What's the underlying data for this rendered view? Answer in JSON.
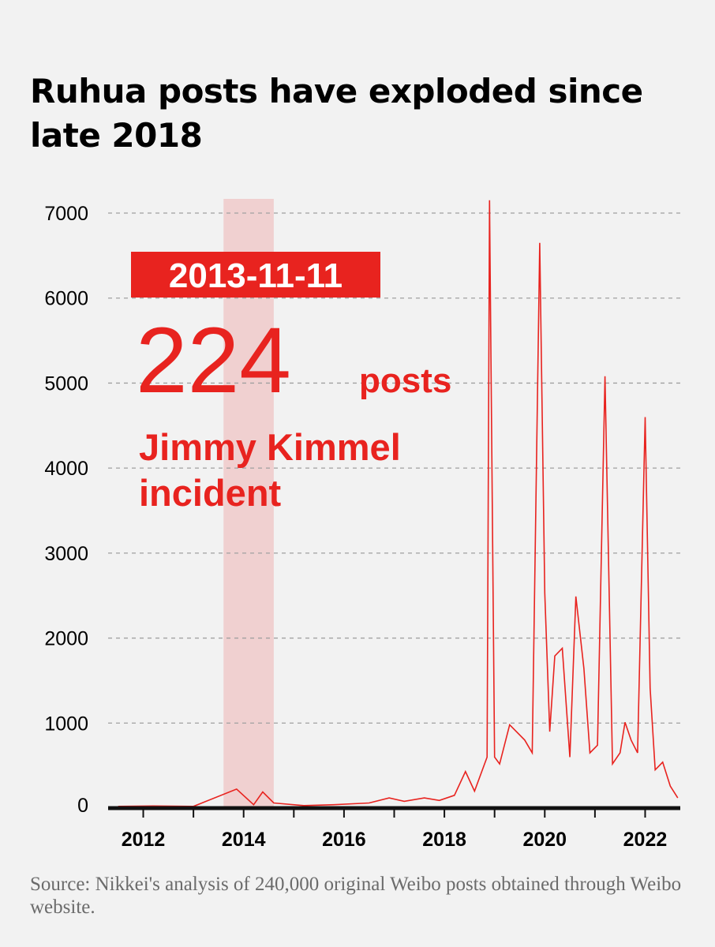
{
  "title": "Ruhua posts have exploded since late 2018",
  "source": "Source: Nikkei's analysis of 240,000 original Weibo posts obtained through Weibo website.",
  "colors": {
    "line": "#e8231f",
    "highlight": "#f0d0d0",
    "grid": "#a0a0a0",
    "axis": "#111111",
    "background": "#f2f2f2"
  },
  "chart_data": {
    "type": "line",
    "title": "Ruhua posts have exploded since late 2018",
    "xlabel": "",
    "ylabel": "",
    "xlim": [
      2011.3,
      2022.7
    ],
    "ylim": [
      0,
      7000
    ],
    "y_ticks": [
      0,
      1000,
      2000,
      3000,
      4000,
      5000,
      6000,
      7000
    ],
    "y_tick_labels": [
      "0",
      "1000",
      "2000",
      "3000",
      "4000",
      "5000",
      "6000",
      "7000"
    ],
    "x_ticks": [
      2012,
      2014,
      2016,
      2018,
      2020,
      2022
    ],
    "x_tick_labels": [
      "2012",
      "2014",
      "2016",
      "2018",
      "2020",
      "2022"
    ],
    "grid": "horizontal dashed",
    "highlight_range": [
      2013.6,
      2014.6
    ],
    "annotation": {
      "date": "2013-11-11",
      "value": "224",
      "unit": "posts",
      "event": "Jimmy Kimmel incident"
    },
    "series": [
      {
        "x": [
          2011.5,
          2012.2,
          2013.0,
          2013.86,
          2014.2,
          2014.38,
          2014.6,
          2015.2,
          2015.8,
          2016.5,
          2016.9,
          2017.2,
          2017.6,
          2017.9,
          2018.2,
          2018.42,
          2018.6,
          2018.85,
          2018.9,
          2019.0,
          2019.1,
          2019.3,
          2019.6,
          2019.75,
          2019.9,
          2020.0,
          2020.1,
          2020.2,
          2020.35,
          2020.5,
          2020.62,
          2020.78,
          2020.9,
          2021.05,
          2021.2,
          2021.35,
          2021.5,
          2021.6,
          2021.72,
          2021.85,
          2022.0,
          2022.1,
          2022.2,
          2022.35,
          2022.5,
          2022.65
        ],
        "y": [
          20,
          25,
          20,
          224,
          40,
          190,
          60,
          30,
          40,
          60,
          120,
          80,
          120,
          90,
          150,
          430,
          200,
          600,
          7150,
          600,
          520,
          980,
          800,
          650,
          6650,
          2530,
          900,
          1790,
          1880,
          600,
          2490,
          1640,
          650,
          740,
          5080,
          520,
          650,
          1010,
          800,
          650,
          4600,
          1410,
          450,
          540,
          260,
          120
        ]
      }
    ]
  }
}
